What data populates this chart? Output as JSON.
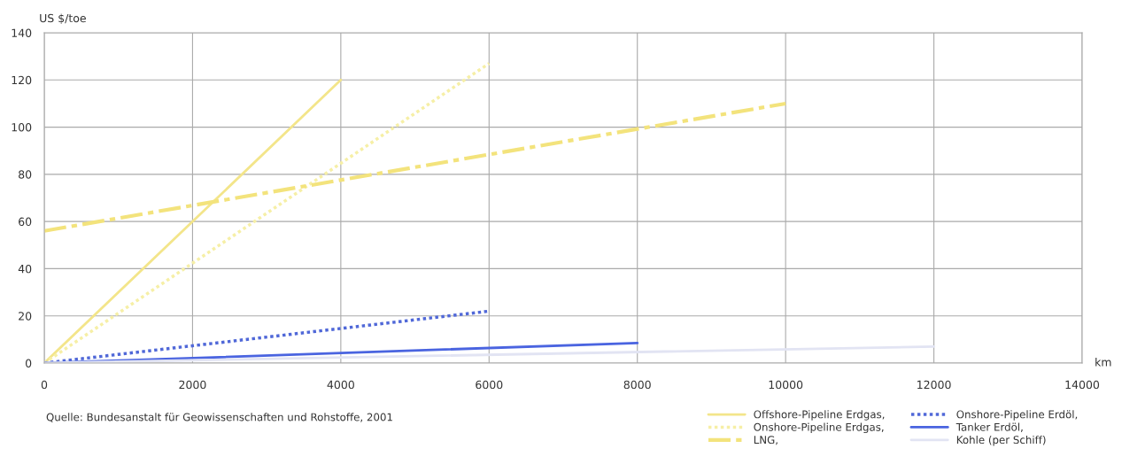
{
  "chart_data": {
    "type": "line",
    "ylabel": "US $/toe",
    "xlabel": "km",
    "xlim": [
      0,
      14000
    ],
    "xticks": [
      0,
      2000,
      4000,
      6000,
      8000,
      10000,
      12000,
      14000
    ],
    "ylim": [
      0,
      140
    ],
    "yticks": [
      0,
      20,
      40,
      60,
      80,
      100,
      120,
      140
    ],
    "grid": true,
    "legend": "bottom right",
    "marker": "none",
    "series": [
      {
        "name": "Offshore-Pipeline Erdgas,",
        "color": "#f3e58a",
        "line_style": "solid",
        "x": [
          0,
          4000
        ],
        "values": [
          0,
          120
        ]
      },
      {
        "name": "Onshore-Pipeline Erdgas,",
        "color": "#f6efa6",
        "line_style": "dotted",
        "x": [
          0,
          6000
        ],
        "values": [
          0,
          127
        ]
      },
      {
        "name": "LNG,",
        "color": "#f3e37c",
        "line_style": "dashdot",
        "x": [
          0,
          10000
        ],
        "values": [
          56,
          110
        ]
      },
      {
        "name": "Onshore-Pipeline Erdöl,",
        "color": "#5068d8",
        "line_style": "dotted",
        "x": [
          0,
          6000
        ],
        "values": [
          0,
          22
        ]
      },
      {
        "name": "Tanker Erdöl,",
        "color": "#4a64e0",
        "line_style": "solid",
        "x": [
          0,
          8000
        ],
        "values": [
          0,
          8.5
        ]
      },
      {
        "name": "Kohle (per Schiff)",
        "color": "#e2e4f3",
        "line_style": "solid",
        "x": [
          0,
          12000
        ],
        "values": [
          0,
          7
        ]
      }
    ],
    "annotations": [
      "Quelle: Bundesanstalt für Geowissenschaften und Rohstoffe, 2001"
    ]
  }
}
